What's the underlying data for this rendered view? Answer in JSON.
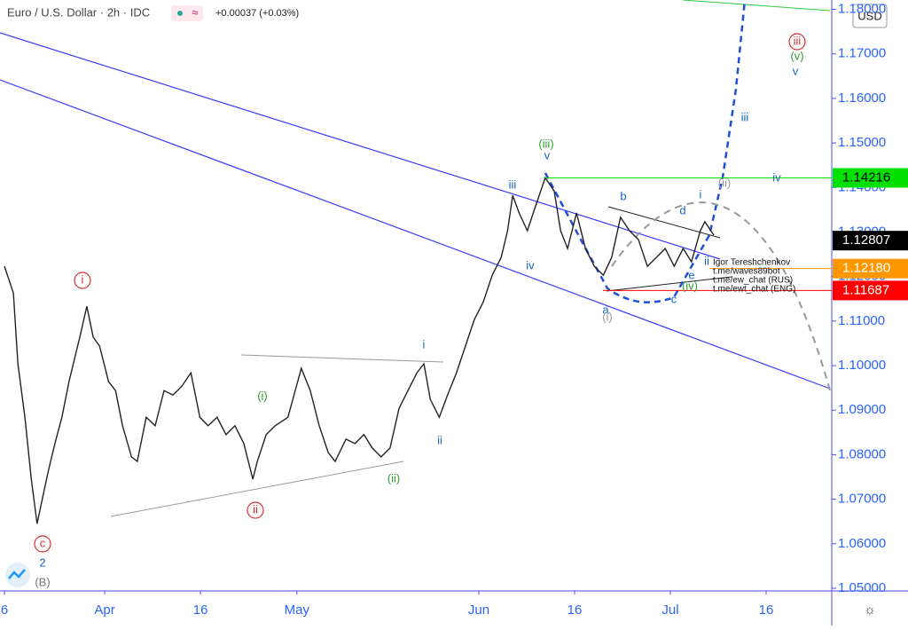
{
  "chart_data": {
    "type": "line",
    "title": "Euro / U.S. Dollar · 2h · IDC",
    "change": "+0.00037 (+0.03%)",
    "currency": "USD",
    "series": [
      {
        "name": "EURUSD",
        "color": "#222222",
        "x": [
          0,
          1.4,
          2.1,
          3.2,
          4.2,
          5.1,
          6.0,
          6.9,
          7.9,
          9.0,
          10.1,
          11.8,
          12.9,
          13.9,
          14.9,
          16.3,
          17.4,
          18.5,
          19.9,
          20.8,
          22.2,
          23.6,
          25.0,
          26.4,
          27.8,
          29.2,
          30.6,
          31.9,
          33.3,
          34.7,
          36.1,
          37.5,
          38.9,
          39.6,
          41.0,
          42.4,
          44.4,
          46.5,
          47.9,
          49.3,
          50.7,
          51.8,
          53.5,
          54.9,
          56.3,
          57.6,
          59.0,
          60.4,
          61.8,
          63.2,
          64.6,
          65.7,
          66.7,
          68.1,
          69.4,
          70.8,
          72.2,
          73.6,
          75.0,
          76.4,
          77.8,
          78.8,
          79.6,
          80.6,
          81.9,
          83.3,
          84.7,
          86.1,
          87.1,
          88.2,
          89.6,
          91.0,
          92.4,
          93.8,
          95.1,
          96.5,
          97.9,
          99.3,
          100.7,
          102.1,
          103.5,
          104.9,
          106.3,
          107.6,
          109.0,
          109.7,
          111.1
        ],
        "values": [
          1.1223,
          1.1163,
          1.1004,
          1.0884,
          1.0745,
          1.0645,
          1.0705,
          1.0765,
          1.0825,
          1.0884,
          1.0964,
          1.1064,
          1.1133,
          1.1064,
          1.1044,
          1.0964,
          1.0944,
          1.0865,
          1.0795,
          1.0785,
          1.0884,
          1.0865,
          1.0944,
          1.0934,
          1.0954,
          1.0984,
          1.0884,
          1.0865,
          1.0884,
          1.0845,
          1.0865,
          1.0825,
          1.0745,
          1.0785,
          1.0845,
          1.0865,
          1.0884,
          1.0994,
          1.0944,
          1.0865,
          1.0805,
          1.0785,
          1.0835,
          1.0825,
          1.0845,
          1.0815,
          1.0795,
          1.0815,
          1.0904,
          1.0944,
          1.0984,
          1.1004,
          1.0924,
          1.0884,
          1.0934,
          1.0984,
          1.1044,
          1.1104,
          1.1143,
          1.1203,
          1.1243,
          1.1303,
          1.1382,
          1.1343,
          1.1303,
          1.1363,
          1.1422,
          1.1392,
          1.1303,
          1.1263,
          1.1343,
          1.1263,
          1.1223,
          1.1203,
          1.1243,
          1.1333,
          1.1303,
          1.1283,
          1.1223,
          1.1243,
          1.1263,
          1.1223,
          1.1263,
          1.1233,
          1.1303,
          1.1323,
          1.1293
        ]
      }
    ],
    "xlim": [
      -0.7,
      129.3
    ],
    "xticks": [
      {
        "value": 0,
        "label": "6"
      },
      {
        "value": 15.7,
        "label": "Apr"
      },
      {
        "value": 30.7,
        "label": "16"
      },
      {
        "value": 45.8,
        "label": "May"
      },
      {
        "value": 74.3,
        "label": "Jun"
      },
      {
        "value": 89.3,
        "label": "16"
      },
      {
        "value": 104.3,
        "label": "Jul"
      },
      {
        "value": 119.3,
        "label": "16"
      }
    ],
    "ylim": [
      1.0496,
      1.1821
    ],
    "yticks": [
      {
        "value": 1.05,
        "label": "1.05000"
      },
      {
        "value": 1.06,
        "label": "1.06000"
      },
      {
        "value": 1.07,
        "label": "1.07000"
      },
      {
        "value": 1.08,
        "label": "1.08000"
      },
      {
        "value": 1.09,
        "label": "1.09000"
      },
      {
        "value": 1.1,
        "label": "1.10000"
      },
      {
        "value": 1.11,
        "label": "1.11000"
      },
      {
        "value": 1.12,
        "label": "1.12000"
      },
      {
        "value": 1.13,
        "label": "1.13000"
      },
      {
        "value": 1.14,
        "label": "1.14000"
      },
      {
        "value": 1.15,
        "label": "1.15000"
      },
      {
        "value": 1.16,
        "label": "1.16000"
      },
      {
        "value": 1.17,
        "label": "1.17000"
      },
      {
        "value": 1.18,
        "label": "1.18000"
      }
    ],
    "price_labels": [
      {
        "value": 1.14216,
        "label": "1.14216",
        "color": "#00e000"
      },
      {
        "value": 1.12807,
        "label": "1.12807",
        "color": "#000000"
      },
      {
        "value": 1.1218,
        "label": "1.12180",
        "color": "#ff9800"
      },
      {
        "value": 1.11687,
        "label": "1.11687",
        "color": "#ff0000"
      }
    ],
    "annotations": [
      {
        "text": "i",
        "color": "#d32f2f",
        "circled": true
      },
      {
        "text": "ii",
        "color": "#d32f2f",
        "circled": true
      },
      {
        "text": "c",
        "color": "#d32f2f",
        "circled": true
      },
      {
        "text": "2",
        "color": "#1565c0"
      },
      {
        "text": "(B)",
        "color": "#777777"
      },
      {
        "text": "iii",
        "color": "#d32f2f",
        "circled": true
      },
      {
        "text": "(v)",
        "color": "#2e9d2e"
      },
      {
        "text": "v",
        "color": "#1565c0"
      },
      {
        "text": "(iii)",
        "color": "#2e9d2e"
      },
      {
        "text": "v",
        "color": "#1565c0"
      },
      {
        "text": "iii",
        "color": "#1565c0"
      },
      {
        "text": "iv",
        "color": "#1565c0"
      },
      {
        "text": "(i)",
        "color": "#2e9d2e"
      },
      {
        "text": "(ii)",
        "color": "#2e9d2e"
      },
      {
        "text": "i",
        "color": "#1565c0"
      },
      {
        "text": "ii",
        "color": "#1565c0"
      },
      {
        "text": "b",
        "color": "#1565c0"
      },
      {
        "text": "d",
        "color": "#1565c0"
      },
      {
        "text": "i",
        "color": "#1565c0"
      },
      {
        "text": "(ii)",
        "color": "#999999"
      },
      {
        "text": "iii",
        "color": "#1565c0"
      },
      {
        "text": "iv",
        "color": "#1565c0"
      },
      {
        "text": "a",
        "color": "#1565c0"
      },
      {
        "text": "(i)",
        "color": "#999999"
      },
      {
        "text": "c",
        "color": "#1565c0"
      },
      {
        "text": "e",
        "color": "#1565c0"
      },
      {
        "text": "(iv)",
        "color": "#2e9d2e"
      },
      {
        "text": "ii",
        "color": "#1565c0"
      }
    ],
    "author_notes": [
      "Igor Tereshchenkov",
      "t.me/waves89bot",
      "t.me/ew_chat (RUS)",
      "t.me/ewt_chat (ENG)"
    ]
  }
}
